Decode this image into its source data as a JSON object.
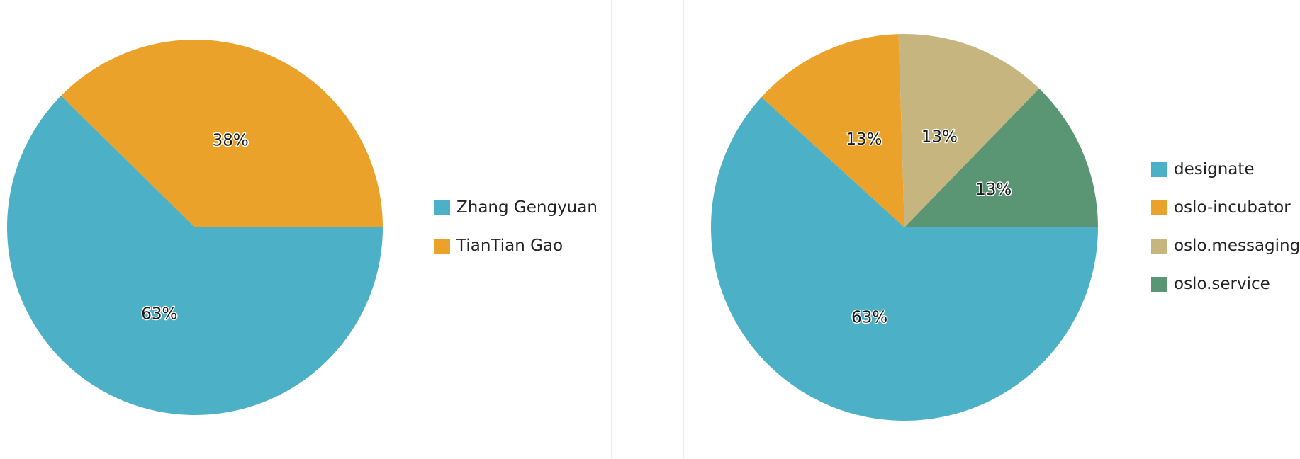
{
  "chart_data": [
    {
      "type": "pie",
      "slices": [
        {
          "label": "Zhang Gengyuan",
          "value": 63,
          "display": "63%",
          "color": "#4cb1c6"
        },
        {
          "label": "TianTian Gao",
          "value": 38,
          "display": "38%",
          "color": "#eaa22b"
        }
      ],
      "legend_position": "right"
    },
    {
      "type": "pie",
      "slices": [
        {
          "label": "designate",
          "value": 63,
          "display": "63%",
          "color": "#4cb1c6"
        },
        {
          "label": "oslo-incubator",
          "value": 13,
          "display": "13%",
          "color": "#eaa22b"
        },
        {
          "label": "oslo.messaging",
          "value": 13,
          "display": "13%",
          "color": "#c7b580"
        },
        {
          "label": "oslo.service",
          "value": 13,
          "display": "13%",
          "color": "#5a9673"
        }
      ],
      "legend_position": "right"
    }
  ]
}
